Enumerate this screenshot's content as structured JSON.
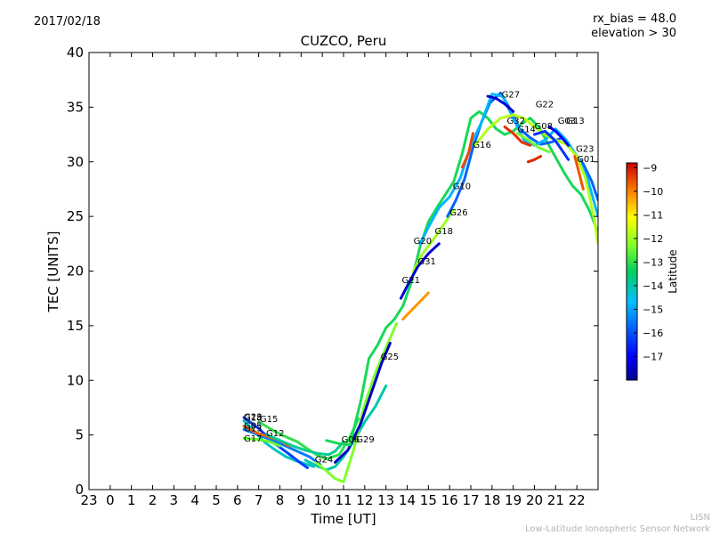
{
  "date": "2017/02/18",
  "rx_bias": "rx_bias = 48.0",
  "elevation": "elevation > 30",
  "credit_short": "LISN",
  "credit_long": "Low-Latitude Ionospheric Sensor Network",
  "chart_data": {
    "type": "line",
    "title": "CUZCO, Peru",
    "xlabel": "Time [UT]",
    "ylabel": "TEC [UNITS]",
    "xlim": [
      23,
      47
    ],
    "ylim": [
      0,
      40
    ],
    "xtick_labels": [
      "23",
      "0",
      "1",
      "2",
      "3",
      "4",
      "5",
      "6",
      "7",
      "8",
      "9",
      "10",
      "11",
      "12",
      "13",
      "14",
      "15",
      "16",
      "17",
      "18",
      "19",
      "20",
      "21",
      "22"
    ],
    "ytick_values": [
      0,
      5,
      10,
      15,
      20,
      25,
      30,
      35,
      40
    ],
    "colorbar": {
      "label": "Latitude",
      "range": [
        -18,
        -8.8
      ],
      "ticks": [
        -9,
        -10,
        -11,
        -12,
        -13,
        -14,
        -15,
        -16,
        -17
      ]
    },
    "series": [
      {
        "name": "G23",
        "lat": -14.2,
        "x": [
          30.3,
          30.8,
          31.3,
          31.8,
          32.3,
          32.8,
          33.3,
          33.6
        ],
        "y": [
          6.3,
          5.3,
          4.3,
          3.6,
          3.0,
          2.6,
          2.3,
          2.1
        ]
      },
      {
        "name": "G18",
        "lat": -16.2,
        "x": [
          30.3,
          31.0,
          31.7,
          32.4,
          33.0,
          33.3
        ],
        "y": [
          6.6,
          5.6,
          4.3,
          3.3,
          2.4,
          2.0
        ]
      },
      {
        "name": "G15",
        "lat": -13.0,
        "x": [
          31.0,
          31.6,
          32.2,
          32.8,
          33.4,
          33.8,
          34.2,
          34.8,
          35.3,
          35.7
        ],
        "y": [
          6.2,
          5.5,
          4.9,
          4.4,
          3.6,
          3.1,
          2.8,
          3.2,
          4.8,
          6.5
        ]
      },
      {
        "name": "G05",
        "lat": -15.5,
        "x": [
          30.3,
          31.0,
          31.8,
          32.6,
          33.4,
          33.9
        ],
        "y": [
          5.5,
          5.0,
          4.4,
          3.7,
          3.0,
          2.3
        ]
      },
      {
        "name": "G13",
        "lat": -9.7,
        "x": [
          30.3,
          30.9,
          31.5,
          32.0,
          32.4
        ],
        "y": [
          5.8,
          5.2,
          4.8,
          4.5,
          4.0
        ]
      },
      {
        "name": "G12",
        "lat": -13.8,
        "x": [
          31.4,
          32.0,
          32.6,
          33.2,
          33.8,
          34.3,
          34.6,
          35.0
        ],
        "y": [
          5.0,
          4.5,
          4.0,
          3.6,
          3.3,
          3.2,
          3.5,
          4.4
        ]
      },
      {
        "name": "G17",
        "lat": -12.5,
        "x": [
          30.3,
          30.9,
          31.5,
          32.0
        ],
        "y": [
          4.7,
          4.6,
          4.4,
          4.0
        ]
      },
      {
        "name": "G24",
        "lat": -14.0,
        "x": [
          33.2,
          33.7,
          34.2,
          34.6,
          35.0,
          35.5,
          36.0,
          36.5,
          37.0
        ],
        "y": [
          2.7,
          2.2,
          1.8,
          2.1,
          3.0,
          4.5,
          6.2,
          7.6,
          9.5
        ]
      },
      {
        "name": "G06",
        "lat": -12.3,
        "x": [
          33.7,
          34.2,
          34.6,
          35.0,
          35.5,
          36.0,
          36.5,
          37.0,
          37.5
        ],
        "y": [
          2.5,
          1.7,
          1.0,
          0.7,
          3.8,
          7.8,
          10.7,
          13.0,
          15.2
        ]
      },
      {
        "name": "G29",
        "lat": -17.5,
        "x": [
          34.6,
          35.2,
          35.8,
          36.3,
          36.8,
          37.2
        ],
        "y": [
          2.5,
          3.6,
          6.0,
          8.8,
          11.6,
          13.4
        ]
      },
      {
        "name": "G25",
        "lat": -13.2,
        "x": [
          34.2,
          34.8,
          35.3,
          35.8,
          36.2,
          36.6,
          37.0,
          37.4,
          37.8,
          38.2,
          38.6,
          39.0,
          39.4,
          39.8,
          40.2,
          40.6,
          41.0,
          41.4,
          41.8,
          42.2,
          42.6,
          43.0,
          43.4,
          43.8,
          44.2,
          44.6,
          45.0,
          45.4,
          45.8,
          46.2,
          46.6,
          47.0
        ],
        "y": [
          4.5,
          4.2,
          4.1,
          8.0,
          12.0,
          13.2,
          14.8,
          15.6,
          16.8,
          19.0,
          22.2,
          24.5,
          25.8,
          27.0,
          28.2,
          30.8,
          34.0,
          34.6,
          34.0,
          33.0,
          32.5,
          32.8,
          33.5,
          34.0,
          33.2,
          31.8,
          30.4,
          29.0,
          27.8,
          27.0,
          25.5,
          23.5
        ]
      },
      {
        "name": "G21",
        "lat": -10.2,
        "x": [
          37.8,
          38.1,
          38.4,
          38.7,
          39.0
        ],
        "y": [
          15.6,
          16.2,
          16.8,
          17.4,
          18.0
        ]
      },
      {
        "name": "G20",
        "lat": -12.0,
        "x": [
          38.3,
          38.7,
          39.2,
          39.7,
          40.2
        ],
        "y": [
          20.0,
          21.5,
          22.8,
          24.2,
          25.6
        ]
      },
      {
        "name": "G31",
        "lat": -17.4,
        "x": [
          37.7,
          38.1,
          38.5,
          39.0,
          39.5
        ],
        "y": [
          17.5,
          19.0,
          20.4,
          21.6,
          22.5
        ]
      },
      {
        "name": "G26",
        "lat": -15.8,
        "x": [
          39.9,
          40.3,
          40.7,
          41.1,
          41.5,
          41.9,
          42.4,
          42.8,
          43.3,
          43.8,
          44.3,
          44.8,
          45.3,
          45.8,
          46.3,
          46.7,
          47.0
        ],
        "y": [
          25.0,
          26.5,
          28.4,
          31.3,
          33.6,
          35.4,
          36.3,
          35.0,
          33.0,
          32.2,
          31.6,
          31.8,
          32.2,
          31.0,
          29.8,
          28.2,
          26.5
        ]
      },
      {
        "name": "G10",
        "lat": -14.8,
        "x": [
          38.6,
          39.0,
          39.5,
          40.0,
          40.5,
          41.0,
          41.5,
          42.0,
          42.5,
          43.0,
          43.5,
          44.0,
          44.5,
          45.0,
          45.5,
          46.0,
          46.5,
          47.0
        ],
        "y": [
          22.5,
          24.0,
          25.8,
          26.8,
          28.5,
          31.5,
          33.6,
          36.2,
          36.0,
          34.0,
          32.0,
          31.5,
          32.0,
          33.0,
          32.0,
          30.5,
          28.5,
          25.0
        ]
      },
      {
        "name": "G16",
        "lat": -9.5,
        "x": [
          40.6,
          40.9,
          41.1
        ],
        "y": [
          29.5,
          30.8,
          32.6
        ]
      },
      {
        "name": "G27",
        "lat": -17.4,
        "x": [
          41.8,
          42.2,
          42.6,
          43.0
        ],
        "y": [
          36.0,
          35.8,
          35.3,
          34.6
        ]
      },
      {
        "name": "G22",
        "lat": -11.8,
        "x": [
          41.2,
          41.8,
          42.4,
          43.0,
          43.5,
          44.0,
          44.5,
          45.0,
          45.5,
          46.0,
          46.4,
          46.8,
          47.0
        ],
        "y": [
          31.5,
          33.0,
          34.0,
          34.3,
          34.0,
          33.2,
          32.5,
          32.0,
          31.6,
          30.5,
          28.5,
          25.0,
          22.5
        ]
      },
      {
        "name": "G32",
        "lat": -9.3,
        "x": [
          42.6,
          43.0,
          43.4,
          43.8
        ],
        "y": [
          33.2,
          32.6,
          31.8,
          31.5
        ]
      },
      {
        "name": "G14",
        "lat": -12.4,
        "x": [
          43.2,
          43.7,
          44.2,
          44.7
        ],
        "y": [
          32.6,
          32.0,
          31.3,
          30.9
        ]
      },
      {
        "name": "G08",
        "lat": -16.4,
        "x": [
          44.0,
          44.5,
          45.0,
          45.6
        ],
        "y": [
          32.5,
          32.8,
          31.9,
          30.2
        ]
      },
      {
        "name": "G03",
        "lat": -17.0,
        "x": [
          44.7,
          45.0,
          45.3,
          45.6
        ],
        "y": [
          33.2,
          32.8,
          32.2,
          31.5
        ]
      },
      {
        "name": "G23",
        "lat": -9.6,
        "x": [
          45.9,
          46.1,
          46.3
        ],
        "y": [
          30.5,
          29.0,
          27.5
        ]
      },
      {
        "name": "G01",
        "lat": -9.2,
        "x": [
          43.7,
          44.0,
          44.3
        ],
        "y": [
          30.0,
          30.2,
          30.5
        ]
      }
    ],
    "labels": [
      {
        "text": "G23",
        "x": 30.3,
        "y": 6.4
      },
      {
        "text": "G18",
        "x": 30.3,
        "y": 6.3
      },
      {
        "text": "G15",
        "x": 31.05,
        "y": 6.2
      },
      {
        "text": "G05",
        "x": 30.3,
        "y": 5.6
      },
      {
        "text": "G13",
        "x": 30.3,
        "y": 5.35
      },
      {
        "text": "G12",
        "x": 31.35,
        "y": 4.9
      },
      {
        "text": "G17",
        "x": 30.3,
        "y": 4.4
      },
      {
        "text": "G24",
        "x": 33.65,
        "y": 2.5
      },
      {
        "text": "G06",
        "x": 34.9,
        "y": 4.3
      },
      {
        "text": "G29",
        "x": 35.6,
        "y": 4.3
      },
      {
        "text": "G25",
        "x": 36.75,
        "y": 11.9
      },
      {
        "text": "G21",
        "x": 37.75,
        "y": 18.9
      },
      {
        "text": "G31",
        "x": 38.5,
        "y": 20.6
      },
      {
        "text": "G20",
        "x": 38.3,
        "y": 22.5
      },
      {
        "text": "G18",
        "x": 39.3,
        "y": 23.4
      },
      {
        "text": "G26",
        "x": 40.0,
        "y": 25.1
      },
      {
        "text": "G10",
        "x": 40.15,
        "y": 27.5
      },
      {
        "text": "G16",
        "x": 41.1,
        "y": 31.3
      },
      {
        "text": "G27",
        "x": 42.45,
        "y": 35.9
      },
      {
        "text": "G22",
        "x": 44.05,
        "y": 35.0
      },
      {
        "text": "G32",
        "x": 42.7,
        "y": 33.5
      },
      {
        "text": "G14",
        "x": 43.2,
        "y": 32.7
      },
      {
        "text": "G08",
        "x": 44.0,
        "y": 33.0
      },
      {
        "text": "G03",
        "x": 45.1,
        "y": 33.5
      },
      {
        "text": "G13",
        "x": 45.5,
        "y": 33.5
      },
      {
        "text": "G23",
        "x": 45.95,
        "y": 30.9
      },
      {
        "text": "G01",
        "x": 46.0,
        "y": 30.0
      }
    ]
  }
}
